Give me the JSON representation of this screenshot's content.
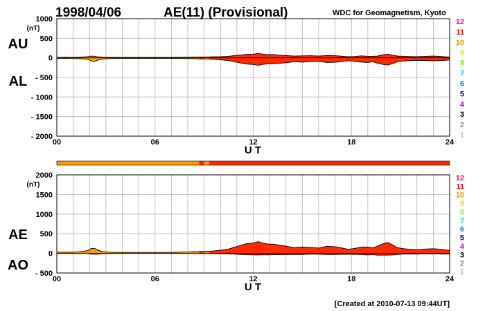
{
  "header": {
    "date": "1998/04/06",
    "title": "AE(11) (Provisional)",
    "source": "WDC for Geomagnetism, Kyoto"
  },
  "footer": {
    "created": "[Created at 2010-07-13 09:44UT]"
  },
  "station_count_scale": {
    "labels": [
      "12",
      "11",
      "10",
      "9",
      "8",
      "7",
      "6",
      "5",
      "4",
      "3",
      "2",
      "1"
    ],
    "colors": [
      "#ff0080",
      "#e00000",
      "#ff9900",
      "#e8e800",
      "#80ff00",
      "#00d8d8",
      "#0080ff",
      "#0000ff",
      "#cc00cc",
      "#000000",
      "#888888",
      "#c0c0c0"
    ]
  },
  "colors": {
    "fill_10_stations": "#ff9900",
    "fill_11_stations": "#ff2a00",
    "grid": "#b0b0b0",
    "trace": "#000000"
  },
  "chart_data": [
    {
      "type": "area",
      "name": "AU-AL",
      "upper_label": "AU",
      "lower_label": "AL",
      "unit": "(nT)",
      "xlabel": "U T",
      "x_ticks": [
        "00",
        "06",
        "12",
        "18",
        "24"
      ],
      "y_ticks": [
        "1000",
        "500",
        "0",
        "- 500",
        "- 1000",
        "- 1500",
        "- 2000"
      ],
      "xlim": [
        0,
        24
      ],
      "ylim": [
        -2000,
        1000
      ],
      "grid": true,
      "x": [
        0,
        0.5,
        1,
        1.5,
        1.9,
        2.1,
        2.3,
        2.5,
        2.8,
        3.2,
        4,
        5,
        6,
        7,
        8,
        8.5,
        9,
        9.5,
        10,
        10.5,
        10.8,
        11.2,
        11.6,
        12,
        12.3,
        12.6,
        12.9,
        13.2,
        13.6,
        14,
        14.5,
        15,
        15.5,
        16,
        16.5,
        17,
        17.5,
        17.8,
        18.2,
        18.6,
        19,
        19.3,
        19.6,
        19.9,
        20.2,
        20.5,
        20.8,
        21.2,
        21.6,
        22,
        22.5,
        23,
        23.5,
        24
      ],
      "au": [
        10,
        15,
        10,
        20,
        30,
        45,
        40,
        25,
        15,
        10,
        10,
        10,
        10,
        10,
        15,
        20,
        20,
        25,
        30,
        40,
        55,
        70,
        90,
        95,
        110,
        95,
        80,
        85,
        70,
        60,
        45,
        50,
        55,
        45,
        60,
        55,
        40,
        30,
        35,
        50,
        40,
        40,
        45,
        75,
        95,
        70,
        45,
        40,
        35,
        30,
        40,
        45,
        35,
        20
      ],
      "al": [
        -20,
        -15,
        -20,
        -25,
        -40,
        -80,
        -90,
        -60,
        -30,
        -20,
        -15,
        -15,
        -15,
        -15,
        -20,
        -25,
        -30,
        -35,
        -50,
        -70,
        -95,
        -130,
        -160,
        -170,
        -190,
        -165,
        -155,
        -150,
        -140,
        -125,
        -100,
        -110,
        -95,
        -90,
        -120,
        -115,
        -90,
        -75,
        -90,
        -110,
        -120,
        -100,
        -140,
        -165,
        -185,
        -150,
        -100,
        -80,
        -70,
        -65,
        -70,
        -75,
        -70,
        -55
      ]
    },
    {
      "type": "area",
      "name": "AE-AO",
      "upper_label": "AE",
      "lower_label": "AO",
      "unit": "(nT)",
      "xlabel": "U T",
      "x_ticks": [
        "00",
        "06",
        "12",
        "18",
        "24"
      ],
      "y_ticks": [
        "2000",
        "1500",
        "1000",
        "500",
        "0",
        "- 500"
      ],
      "xlim": [
        0,
        24
      ],
      "ylim": [
        -500,
        2000
      ],
      "grid": true,
      "x": [
        0,
        0.5,
        1,
        1.5,
        1.9,
        2.1,
        2.3,
        2.5,
        2.8,
        3.2,
        4,
        5,
        6,
        7,
        8,
        8.5,
        9,
        9.5,
        10,
        10.5,
        10.8,
        11.2,
        11.6,
        12,
        12.3,
        12.6,
        12.9,
        13.2,
        13.6,
        14,
        14.5,
        15,
        15.5,
        16,
        16.5,
        17,
        17.5,
        17.8,
        18.2,
        18.6,
        19,
        19.3,
        19.6,
        19.9,
        20.2,
        20.5,
        20.8,
        21.2,
        21.6,
        22,
        22.5,
        23,
        23.5,
        24
      ],
      "ae": [
        30,
        30,
        30,
        45,
        70,
        125,
        130,
        85,
        45,
        30,
        25,
        25,
        25,
        25,
        35,
        45,
        50,
        60,
        80,
        110,
        150,
        200,
        250,
        265,
        300,
        260,
        235,
        235,
        210,
        185,
        145,
        160,
        150,
        135,
        180,
        170,
        130,
        105,
        125,
        160,
        160,
        140,
        185,
        240,
        280,
        220,
        145,
        120,
        105,
        95,
        110,
        120,
        105,
        75
      ],
      "ao": [
        -5,
        0,
        -5,
        -3,
        -5,
        -18,
        -25,
        -18,
        -8,
        -5,
        -3,
        -3,
        -3,
        -3,
        -3,
        -3,
        -5,
        -5,
        -10,
        -15,
        -20,
        -30,
        -35,
        -38,
        -40,
        -35,
        -38,
        -33,
        -35,
        -33,
        -28,
        -30,
        -20,
        -23,
        -30,
        -30,
        -25,
        -23,
        -28,
        -30,
        -40,
        -30,
        -48,
        -45,
        -45,
        -40,
        -28,
        -20,
        -18,
        -18,
        -15,
        -15,
        -18,
        -18
      ]
    }
  ],
  "station_bar": {
    "segments": [
      {
        "from": 0,
        "to": 8.7,
        "stations": 10
      },
      {
        "from": 8.7,
        "to": 9.0,
        "stations": 11
      },
      {
        "from": 9.0,
        "to": 9.3,
        "stations": 10
      },
      {
        "from": 9.3,
        "to": 24,
        "stations": 11
      }
    ]
  }
}
